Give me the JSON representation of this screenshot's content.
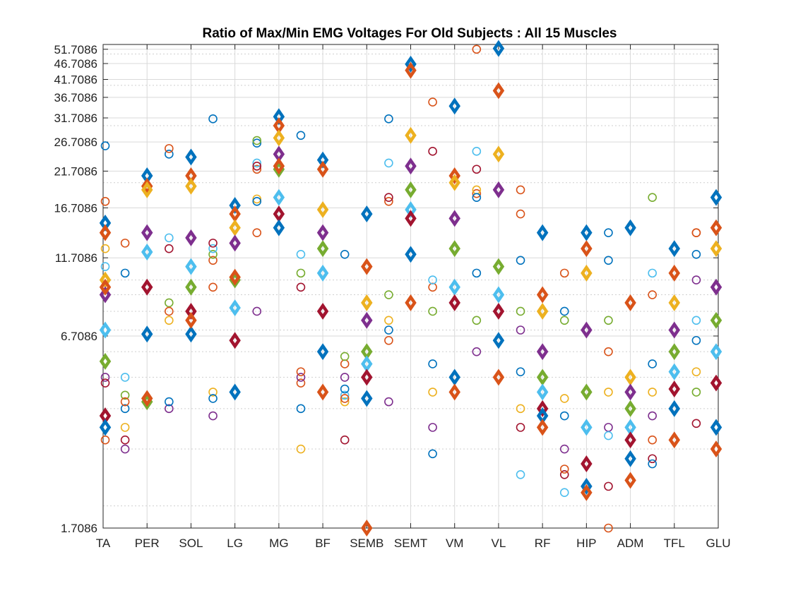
{
  "chart_data": {
    "type": "scatter",
    "title": "Ratio of Max/Min EMG Voltages For Old Subjects : All 15 Muscles",
    "xlabel": "",
    "ylabel": "",
    "y_scale": "log",
    "ylim": [
      1.7086,
      53.5
    ],
    "yticks": [
      1.7086,
      6.7086,
      11.7086,
      16.7086,
      21.7086,
      26.7086,
      31.7086,
      36.7086,
      41.7086,
      46.7086,
      51.7086
    ],
    "ytick_labels": [
      "1.7086",
      "6.7086",
      "11.7086",
      "16.7086",
      "21.7086",
      "26.7086",
      "31.7086",
      "36.7086",
      "41.7086",
      "46.7086",
      "51.7086"
    ],
    "categories": [
      "TA",
      "PER",
      "SOL",
      "LG",
      "MG",
      "BF",
      "SEMB",
      "SEMT",
      "VM",
      "VL",
      "RF",
      "HIP",
      "ADM",
      "TFL",
      "GLU"
    ],
    "grid": true,
    "colors": [
      "#0072BD",
      "#D95319",
      "#EDB120",
      "#7E2F8E",
      "#77AC30",
      "#4DBEEE",
      "#A2142F"
    ],
    "marker_series": [
      {
        "marker": "circle",
        "offset": -0.5
      },
      {
        "marker": "diamond",
        "offset": 0
      }
    ],
    "series": [
      {
        "values": [
          [
            26.0,
            17.5,
            12.5,
            5.0,
            14.0,
            11.0,
            4.8,
            3.5,
            3.2
          ],
          [
            10.5,
            13.0,
            3.5,
            3.0,
            4.4,
            5.0,
            3.2,
            4.0,
            4.2
          ],
          [
            24.5,
            25.5,
            7.5,
            4.0,
            8.5,
            13.5,
            12.5,
            4.2,
            8.0
          ],
          [
            31.5,
            11.5,
            4.5,
            3.8,
            12.0,
            12.5,
            13.0,
            4.3,
            9.5
          ],
          [
            26.5,
            22.0,
            17.8,
            8.0,
            27.0,
            23.0,
            22.5,
            17.5,
            14.0
          ],
          [
            28.0,
            4.8,
            3.0,
            5.0,
            10.5,
            12.0,
            9.5,
            4.0,
            5.2
          ],
          [
            12.0,
            5.5,
            4.2,
            5.0,
            5.8,
            4.4,
            3.2,
            4.6,
            4.3
          ],
          [
            31.5,
            17.5,
            7.5,
            4.2,
            9.0,
            23.0,
            18.0,
            7.0,
            6.5
          ],
          [
            5.5,
            9.5,
            4.5,
            3.5,
            8.0,
            10.0,
            25.0,
            2.9,
            35.5
          ],
          [
            10.5,
            18.5,
            19.0,
            6.0,
            7.5,
            25.0,
            22.0,
            18.0,
            51.7
          ],
          [
            5.2,
            16.0,
            4.0,
            7.0,
            8.0,
            2.5,
            3.5,
            11.5,
            19.0
          ],
          [
            3.8,
            10.5,
            4.3,
            3.0,
            7.5,
            2.2,
            2.5,
            8.0,
            2.6
          ],
          [
            14.0,
            6.0,
            4.5,
            3.5,
            7.5,
            3.3,
            2.3,
            11.5,
            1.7086
          ],
          [
            5.5,
            3.2,
            4.5,
            3.8,
            18.0,
            10.5,
            2.8,
            2.7,
            9.0
          ],
          [
            12.0,
            14.0,
            5.2,
            10.0,
            4.5,
            7.5,
            3.6,
            6.5,
            14.0
          ]
        ]
      },
      {
        "values": [
          [
            15.0,
            14.0,
            10.0,
            9.0,
            5.6,
            7.0,
            3.8,
            3.5,
            9.5
          ],
          [
            21.0,
            19.5,
            19.0,
            14.0,
            4.2,
            12.2,
            9.5,
            6.8,
            4.3
          ],
          [
            24.0,
            21.0,
            19.5,
            13.5,
            9.5,
            11.0,
            8.0,
            6.8,
            7.5
          ],
          [
            17.0,
            16.0,
            14.5,
            13.0,
            10.0,
            8.2,
            6.5,
            4.5,
            10.2
          ],
          [
            32.0,
            30.0,
            27.5,
            24.5,
            22.0,
            18.0,
            16.0,
            14.5,
            22.5
          ],
          [
            23.5,
            22.0,
            16.5,
            14.0,
            12.5,
            10.5,
            8.0,
            6.0,
            4.5
          ],
          [
            16.0,
            11.0,
            8.5,
            7.5,
            6.0,
            5.5,
            5.0,
            4.3,
            1.7086
          ],
          [
            46.5,
            44.5,
            28.0,
            22.5,
            19.0,
            16.5,
            15.5,
            12.0,
            8.5
          ],
          [
            34.5,
            21.0,
            20.0,
            15.5,
            12.5,
            9.5,
            8.5,
            5.0,
            4.5
          ],
          [
            52.0,
            38.5,
            24.5,
            19.0,
            11.0,
            9.0,
            8.0,
            6.5,
            5.0
          ],
          [
            14.0,
            9.0,
            8.0,
            6.0,
            5.0,
            4.5,
            4.0,
            3.8,
            3.5
          ],
          [
            14.0,
            12.5,
            10.5,
            7.0,
            4.5,
            3.5,
            2.7,
            2.3,
            2.2
          ],
          [
            14.5,
            8.5,
            5.0,
            4.5,
            4.0,
            3.5,
            3.2,
            2.8,
            2.4
          ],
          [
            12.5,
            10.5,
            8.5,
            7.0,
            6.0,
            5.2,
            4.6,
            4.0,
            3.2
          ],
          [
            18.0,
            14.5,
            12.5,
            9.5,
            7.5,
            6.0,
            4.8,
            3.5,
            3.0
          ]
        ]
      }
    ]
  }
}
